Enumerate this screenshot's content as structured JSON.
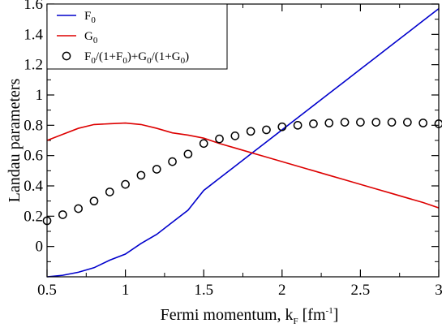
{
  "chart_data": {
    "type": "line",
    "xlabel": "Fermi momentum, k",
    "xlabel_sub": "F",
    "xlabel_unit_pre": " [fm",
    "xlabel_unit_sup": "-1",
    "xlabel_unit_post": "]",
    "ylabel": "Landau parameters",
    "xlim": [
      0.5,
      3.0
    ],
    "ylim": [
      -0.2,
      1.6
    ],
    "xticks": [
      0.5,
      1.0,
      1.5,
      2.0,
      2.5,
      3.0
    ],
    "xtick_labels": [
      "0.5",
      "1",
      "1.5",
      "2",
      "2.5",
      "3"
    ],
    "yticks": [
      0.0,
      0.2,
      0.4,
      0.6,
      0.8,
      1.0,
      1.2,
      1.4,
      1.6
    ],
    "ytick_labels": [
      "0",
      "0.2",
      "0.4",
      "0.6",
      "0.8",
      "1",
      "1.2",
      "1.4",
      "1.6"
    ],
    "legend_position": "top-left",
    "series": [
      {
        "name": "F0",
        "legend_main": "F",
        "legend_sub": "0",
        "style": "line",
        "color": "#0000cc",
        "x": [
          0.5,
          0.6,
          0.7,
          0.8,
          0.9,
          1.0,
          1.1,
          1.2,
          1.3,
          1.4,
          1.5,
          1.6,
          1.7,
          1.8,
          1.9,
          2.0,
          2.1,
          2.2,
          2.3,
          2.4,
          2.5,
          2.6,
          2.7,
          2.8,
          2.9,
          3.0
        ],
        "y": [
          -0.2,
          -0.19,
          -0.17,
          -0.14,
          -0.09,
          -0.05,
          0.02,
          0.08,
          0.16,
          0.24,
          0.37,
          0.45,
          0.53,
          0.61,
          0.69,
          0.77,
          0.85,
          0.93,
          1.01,
          1.09,
          1.17,
          1.25,
          1.33,
          1.41,
          1.49,
          1.57
        ]
      },
      {
        "name": "G0",
        "legend_main": "G",
        "legend_sub": "0",
        "style": "line",
        "color": "#dd0000",
        "x": [
          0.5,
          0.6,
          0.7,
          0.8,
          0.9,
          1.0,
          1.1,
          1.2,
          1.3,
          1.4,
          1.5,
          1.6,
          1.7,
          1.8,
          1.9,
          2.0,
          2.1,
          2.2,
          2.3,
          2.4,
          2.5,
          2.6,
          2.7,
          2.8,
          2.9,
          3.0
        ],
        "y": [
          0.7,
          0.74,
          0.78,
          0.805,
          0.81,
          0.815,
          0.805,
          0.78,
          0.75,
          0.735,
          0.715,
          0.68,
          0.65,
          0.62,
          0.59,
          0.56,
          0.53,
          0.5,
          0.47,
          0.44,
          0.41,
          0.38,
          0.35,
          0.32,
          0.29,
          0.255
        ]
      },
      {
        "name": "F0/(1+F0)+G0/(1+G0)",
        "legend_parts": [
          {
            "t": "F",
            "s": "n"
          },
          {
            "t": "0",
            "s": "sub"
          },
          {
            "t": "/(1+F",
            "s": "n"
          },
          {
            "t": "0",
            "s": "sub"
          },
          {
            "t": ")+G",
            "s": "n"
          },
          {
            "t": "0",
            "s": "sub"
          },
          {
            "t": "/(1+G",
            "s": "n"
          },
          {
            "t": "0",
            "s": "sub"
          },
          {
            "t": ")",
            "s": "n"
          }
        ],
        "style": "markers",
        "marker": "open-circle",
        "color": "#000000",
        "x": [
          0.5,
          0.6,
          0.7,
          0.8,
          0.9,
          1.0,
          1.1,
          1.2,
          1.3,
          1.4,
          1.5,
          1.6,
          1.7,
          1.8,
          1.9,
          2.0,
          2.1,
          2.2,
          2.3,
          2.4,
          2.5,
          2.6,
          2.7,
          2.8,
          2.9,
          3.0
        ],
        "y": [
          0.17,
          0.21,
          0.25,
          0.3,
          0.36,
          0.41,
          0.47,
          0.51,
          0.56,
          0.61,
          0.68,
          0.71,
          0.73,
          0.76,
          0.77,
          0.79,
          0.8,
          0.81,
          0.815,
          0.82,
          0.82,
          0.82,
          0.82,
          0.82,
          0.815,
          0.81
        ]
      }
    ]
  }
}
